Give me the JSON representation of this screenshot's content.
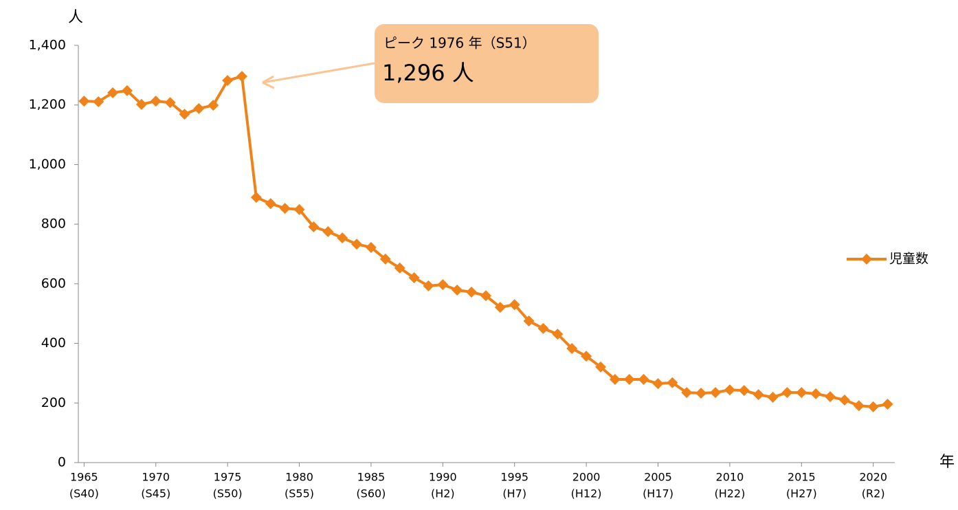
{
  "chart_data": {
    "type": "line",
    "y_label": "人",
    "x_label": "年",
    "x": [
      1965,
      1966,
      1967,
      1968,
      1969,
      1970,
      1971,
      1972,
      1973,
      1974,
      1975,
      1976,
      1977,
      1978,
      1979,
      1980,
      1981,
      1982,
      1983,
      1984,
      1985,
      1986,
      1987,
      1988,
      1989,
      1990,
      1991,
      1992,
      1993,
      1994,
      1995,
      1996,
      1997,
      1998,
      1999,
      2000,
      2001,
      2002,
      2003,
      2004,
      2005,
      2006,
      2007,
      2008,
      2009,
      2010,
      2011,
      2012,
      2013,
      2014,
      2015,
      2016,
      2017,
      2018,
      2019,
      2020,
      2021
    ],
    "series": [
      {
        "name": "児童数",
        "color": "#f0821a",
        "values": [
          1213,
          1211,
          1241,
          1248,
          1202,
          1213,
          1208,
          1169,
          1188,
          1199,
          1282,
          1296,
          890,
          869,
          853,
          849,
          791,
          775,
          754,
          733,
          722,
          683,
          653,
          620,
          593,
          597,
          579,
          572,
          560,
          521,
          530,
          475,
          450,
          431,
          383,
          357,
          321,
          279,
          279,
          279,
          265,
          268,
          235,
          233,
          235,
          244,
          242,
          228,
          219,
          235,
          235,
          231,
          221,
          210,
          191,
          187,
          196
        ]
      }
    ],
    "xlim": [
      1964.6,
      2021.5
    ],
    "xticks": [
      {
        "value": 1965,
        "label": "1965"
      },
      {
        "value": 1970,
        "label": "1970"
      },
      {
        "value": 1975,
        "label": "1975"
      },
      {
        "value": 1980,
        "label": "1980"
      },
      {
        "value": 1985,
        "label": "1985"
      },
      {
        "value": 1990,
        "label": "1990"
      },
      {
        "value": 1995,
        "label": "1995"
      },
      {
        "value": 2000,
        "label": "2000"
      },
      {
        "value": 2005,
        "label": "2005"
      },
      {
        "value": 2010,
        "label": "2010"
      },
      {
        "value": 2015,
        "label": "2015"
      },
      {
        "value": 2020,
        "label": "2020"
      }
    ],
    "xtick_era_labels": [
      "(S40)",
      "(S45)",
      "(S50)",
      "(S55)",
      "(S60)",
      "(H2)",
      "(H7)",
      "(H12)",
      "(H17)",
      "(H22)",
      "(H27)",
      "(R2)"
    ],
    "ylim": [
      0,
      1400
    ],
    "yticks": [
      0,
      200,
      400,
      600,
      800,
      {
        "value": 1000,
        "label": "1,000"
      },
      {
        "value": 1200,
        "label": "1,200"
      },
      {
        "value": 1400,
        "label": "1,400"
      }
    ],
    "grid": false,
    "legend": "right",
    "annotation": {
      "title": "ピーク 1976 年（S51）",
      "text": "1,296 人",
      "x": 1976,
      "color": "#f9c592"
    }
  }
}
